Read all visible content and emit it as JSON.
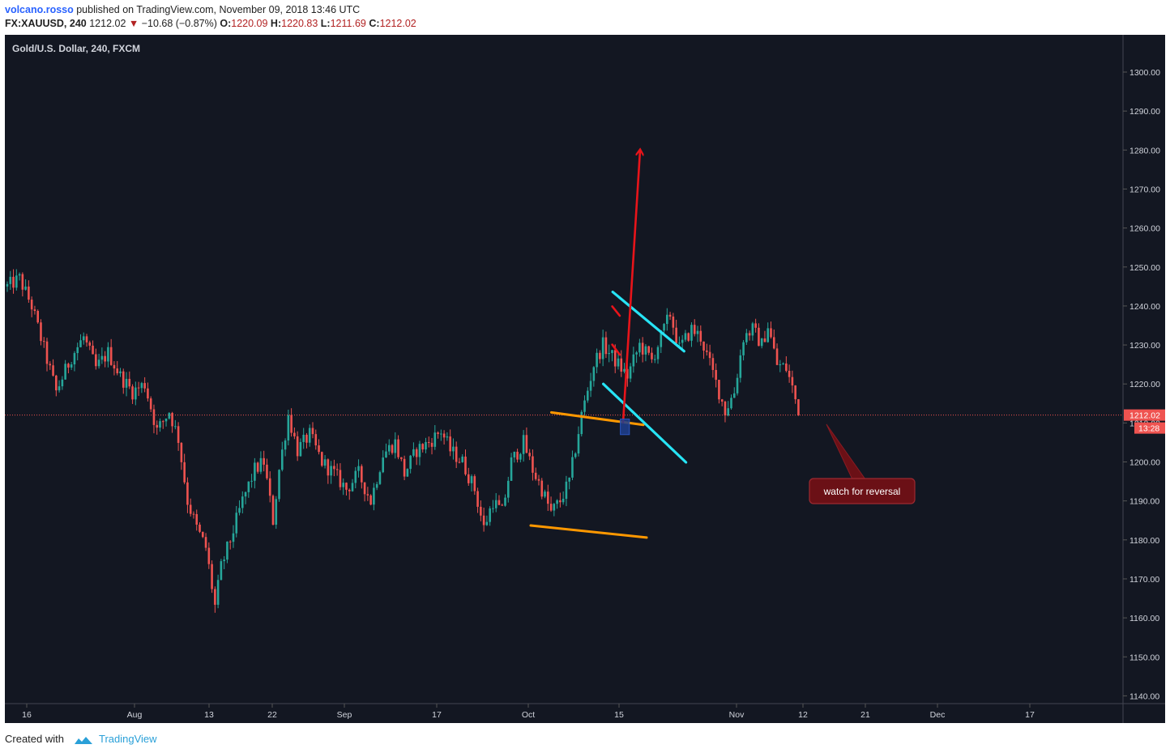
{
  "header": {
    "author": "volcano.rosso",
    "published_text": "published on TradingView.com, November 09, 2018 13:46 UTC",
    "symbol": "FX:XAUUSD, 240",
    "last": "1212.02",
    "change": "−10.68 (−0.87%)",
    "o_label": "O:",
    "o": "1220.09",
    "h_label": "H:",
    "h": "1220.83",
    "l_label": "L:",
    "l": "1211.69",
    "c_label": "C:",
    "c": "1212.02"
  },
  "footer": {
    "created_with": "Created with",
    "brand": "TradingView"
  },
  "colors": {
    "background": "#131722",
    "up": "#26a69a",
    "down": "#ef5350",
    "orange_lines": "#ff9800",
    "cyan_lines": "#27e4f5",
    "arrow": "#e8141a",
    "zone": "#1e3f8f",
    "label_bg": "#6b1016"
  },
  "chart_data": {
    "type": "candlestick",
    "title": "Gold/U.S. Dollar, 240, FXCM",
    "ylim": [
      1136,
      1308
    ],
    "y_ticks": [
      "1300.00",
      "1290.00",
      "1280.00",
      "1270.00",
      "1260.00",
      "1250.00",
      "1240.00",
      "1230.00",
      "1220.00",
      "1210.00",
      "1200.00",
      "1190.00",
      "1180.00",
      "1170.00",
      "1160.00",
      "1150.00",
      "1140.00"
    ],
    "x_ticks": [
      "16",
      "Aug",
      "13",
      "22",
      "Sep",
      "17",
      "Oct",
      "15",
      "Nov",
      "12",
      "21",
      "Dec",
      "17"
    ],
    "last_price_label": "1212.02",
    "countdown_label": "13:28",
    "price_path": [
      [
        0,
        1245
      ],
      [
        4,
        1247
      ],
      [
        8,
        1240
      ],
      [
        12,
        1229
      ],
      [
        16,
        1218
      ],
      [
        21,
        1227
      ],
      [
        25,
        1232
      ],
      [
        29,
        1224
      ],
      [
        33,
        1228
      ],
      [
        37,
        1222
      ],
      [
        41,
        1218
      ],
      [
        45,
        1220
      ],
      [
        49,
        1208
      ],
      [
        53,
        1213
      ],
      [
        56,
        1206
      ],
      [
        59,
        1190
      ],
      [
        62,
        1183
      ],
      [
        65,
        1178
      ],
      [
        68,
        1163
      ],
      [
        70,
        1173
      ],
      [
        73,
        1180
      ],
      [
        77,
        1190
      ],
      [
        81,
        1198
      ],
      [
        84,
        1200
      ],
      [
        87,
        1185
      ],
      [
        89,
        1198
      ],
      [
        92,
        1212
      ],
      [
        95,
        1203
      ],
      [
        99,
        1207
      ],
      [
        103,
        1200
      ],
      [
        107,
        1197
      ],
      [
        111,
        1193
      ],
      [
        115,
        1197
      ],
      [
        119,
        1190
      ],
      [
        123,
        1202
      ],
      [
        127,
        1205
      ],
      [
        130,
        1197
      ],
      [
        134,
        1203
      ],
      [
        138,
        1205
      ],
      [
        142,
        1208
      ],
      [
        145,
        1203
      ],
      [
        149,
        1200
      ],
      [
        153,
        1193
      ],
      [
        156,
        1183
      ],
      [
        159,
        1190
      ],
      [
        162,
        1187
      ],
      [
        165,
        1200
      ],
      [
        169,
        1205
      ],
      [
        172,
        1198
      ],
      [
        175,
        1193
      ],
      [
        178,
        1187
      ],
      [
        181,
        1190
      ],
      [
        184,
        1195
      ],
      [
        188,
        1212
      ],
      [
        192,
        1225
      ],
      [
        195,
        1230
      ],
      [
        199,
        1226
      ],
      [
        203,
        1222
      ],
      [
        207,
        1230
      ],
      [
        211,
        1226
      ],
      [
        214,
        1232
      ],
      [
        217,
        1238
      ],
      [
        220,
        1229
      ],
      [
        224,
        1234
      ],
      [
        227,
        1232
      ],
      [
        230,
        1225
      ],
      [
        233,
        1218
      ],
      [
        235,
        1213
      ],
      [
        238,
        1218
      ],
      [
        241,
        1232
      ],
      [
        244,
        1234
      ],
      [
        247,
        1230
      ],
      [
        249,
        1235
      ],
      [
        252,
        1225
      ],
      [
        255,
        1224
      ],
      [
        257,
        1219
      ],
      [
        259,
        1213
      ]
    ],
    "annotations": {
      "orange_channel": [
        [
          [
            1180.5,
            1212.7
          ],
          [
            1294,
            1209.5
          ]
        ],
        [
          [
            1155,
            1183.7
          ],
          [
            1298,
            1180.6
          ]
        ]
      ],
      "cyan_channel": [
        [
          [
            1256.2,
            1243.6
          ],
          [
            1344.3,
            1228.4
          ]
        ],
        [
          [
            1244.6,
            1220.0
          ],
          [
            1346.6,
            1199.9
          ]
        ]
      ],
      "red_small": [
        [
          [
            1255.6,
            1239.9
          ],
          [
            1264.9,
            1237.5
          ]
        ],
        [
          [
            1255.6,
            1230.1
          ],
          [
            1264.9,
            1227.5
          ]
        ]
      ],
      "red_arrow": [
        [
          1269.0,
          1210.1
        ],
        [
          1290.0,
          1280.0
        ]
      ],
      "zone": {
        "from": 1265.6,
        "to": 1276.8,
        "top": 1211.0,
        "bottom": 1207.0
      },
      "callout_text": "watch for reversal"
    }
  }
}
